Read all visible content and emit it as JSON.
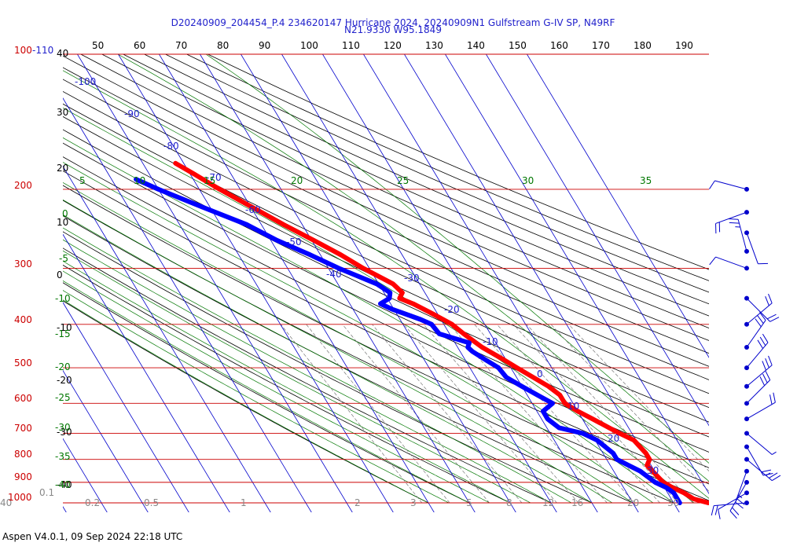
{
  "title_line1": "D20240909_204454_P.4 234620147 Hurricane 2024, 20240909N1 Gulfstream G-IV SP, N49RF",
  "title_line2": "N21.9330 W95.1849",
  "footer": "Aspen V4.0.1, 09 Sep 2024  22:18 UTC",
  "colors": {
    "isobar": "#cc0000",
    "isotherm": "#0000cc",
    "dry_adiabat": "#000000",
    "moist_adiabat": "#007700",
    "mixing_ratio": "#777777",
    "temperature": "#ff0000",
    "dewpoint": "#0000ff"
  },
  "chart_data": {
    "type": "line",
    "diagram": "skew-T log-P",
    "y_scale": "log",
    "ylim": [
      1000,
      100
    ],
    "isobars": [
      "100",
      "200",
      "300",
      "400",
      "500",
      "600",
      "700",
      "800",
      "900",
      "1000"
    ],
    "top_isobar_extra": "-110",
    "theta_top_labels": [
      "50",
      "60",
      "70",
      "80",
      "90",
      "100",
      "110",
      "120",
      "130",
      "140",
      "150",
      "160",
      "170",
      "180",
      "190"
    ],
    "theta_left_labels": [
      "40",
      "30",
      "20",
      "10",
      "0",
      "-10",
      "-20",
      "-30",
      "-40"
    ],
    "isotherm_labels": [
      "-100",
      "-90",
      "-80",
      "-70",
      "-60",
      "-50",
      "-40",
      "-30",
      "-20",
      "-10",
      "0",
      "10",
      "20",
      "30"
    ],
    "moist_top_labels": [
      "5",
      "10",
      "15",
      "20",
      "25",
      "30",
      "35"
    ],
    "moist_left_labels": [
      "0",
      "-5",
      "-10",
      "-15",
      "-20",
      "-25",
      "-30",
      "-35",
      "-40"
    ],
    "mixing_ratio_labels": [
      "0.1",
      "0.2",
      "0.5",
      "1",
      "2",
      "3",
      "5",
      "8",
      "12",
      "16",
      "20",
      "30",
      "40"
    ],
    "series": [
      {
        "name": "Temperature",
        "p": [
          1000,
          980,
          950,
          925,
          900,
          850,
          825,
          800,
          775,
          750,
          725,
          700,
          650,
          625,
          600,
          575,
          550,
          500,
          480,
          450,
          420,
          400,
          380,
          360,
          350,
          340,
          325,
          300,
          280,
          260,
          240,
          220,
          200,
          185,
          175
        ],
        "t": [
          28.5,
          25.5,
          24.0,
          22.0,
          20.5,
          19.5,
          19.0,
          20.5,
          20.5,
          20.0,
          19.5,
          17.0,
          12.5,
          10.0,
          8.0,
          8.0,
          6.5,
          1.5,
          -0.5,
          -4.0,
          -6.5,
          -8.0,
          -11.0,
          -14.5,
          -17.0,
          -15.5,
          -16.5,
          -21.5,
          -25.0,
          -29.5,
          -34.5,
          -39.5,
          -45.0,
          -49.0,
          -52.0
        ]
      },
      {
        "name": "Dewpoint",
        "p": [
          1000,
          980,
          950,
          925,
          900,
          850,
          825,
          800,
          775,
          750,
          725,
          700,
          690,
          680,
          650,
          625,
          600,
          575,
          550,
          525,
          500,
          480,
          460,
          450,
          440,
          420,
          400,
          390,
          370,
          360,
          350,
          340,
          325,
          300,
          280,
          260,
          240,
          220,
          200,
          190
        ],
        "t": [
          21.5,
          21.5,
          21.5,
          20.5,
          18.5,
          16.5,
          14.5,
          12.5,
          12.5,
          11.5,
          10.5,
          8.0,
          5.5,
          3.0,
          1.5,
          1.5,
          5.0,
          2.5,
          0.0,
          -2.5,
          -3.0,
          -5.0,
          -7.0,
          -7.5,
          -6.5,
          -12.5,
          -13.0,
          -15.0,
          -20.5,
          -22.5,
          -19.5,
          -18.5,
          -20.5,
          -27.5,
          -32.5,
          -38.5,
          -43.5,
          -51.5,
          -60.0,
          -64.0
        ]
      }
    ],
    "wind_barbs": {
      "p": [
        200,
        225,
        250,
        275,
        300,
        350,
        400,
        450,
        500,
        550,
        600,
        650,
        700,
        750,
        800,
        850,
        900,
        950,
        1000
      ],
      "direction_deg": [
        75,
        110,
        200,
        15,
        70,
        225,
        310,
        325,
        320,
        310,
        315,
        300,
        230,
        210,
        230,
        160,
        150,
        120,
        95
      ],
      "speed_kt": [
        10,
        20,
        10,
        25,
        10,
        20,
        20,
        30,
        30,
        30,
        30,
        20,
        5,
        20,
        25,
        25,
        20,
        10,
        20
      ]
    }
  }
}
